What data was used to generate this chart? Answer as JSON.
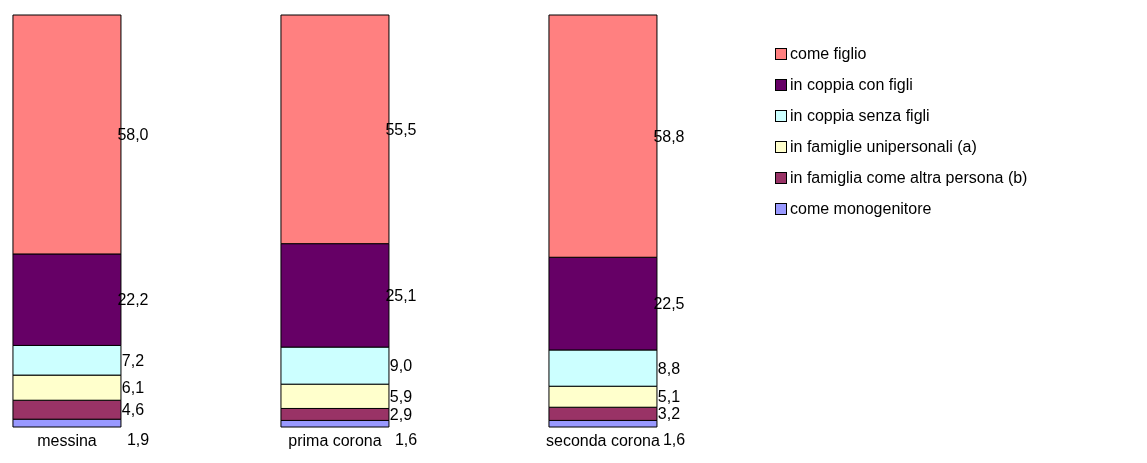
{
  "chart_data": {
    "type": "bar",
    "stacked": true,
    "categories": [
      "messina",
      "prima corona",
      "seconda corona"
    ],
    "legend": "top right",
    "series": [
      {
        "name": "come monogenitore",
        "color": "#9999ff",
        "values": [
          1.9,
          1.6,
          1.6
        ],
        "value_labels": [
          "1,9",
          "1,6",
          "1,6"
        ]
      },
      {
        "name": "in famiglia come altra persona (b)",
        "color": "#993366",
        "values": [
          4.6,
          2.9,
          3.2
        ],
        "value_labels": [
          "4,6",
          "2,9",
          "3,2"
        ]
      },
      {
        "name": "in famiglie unipersonali (a)",
        "color": "#ffffcc",
        "values": [
          6.1,
          5.9,
          5.1
        ],
        "value_labels": [
          "6,1",
          "5,9",
          "5,1"
        ]
      },
      {
        "name": "in coppia senza figli",
        "color": "#ccffff",
        "values": [
          7.2,
          9.0,
          8.8
        ],
        "value_labels": [
          "7,2",
          "9,0",
          "8,8"
        ]
      },
      {
        "name": "in coppia con figli",
        "color": "#660066",
        "values": [
          22.2,
          25.1,
          22.5
        ],
        "value_labels": [
          "22,2",
          "25,1",
          "22,5"
        ]
      },
      {
        "name": "come figlio",
        "color": "#ff8080",
        "values": [
          58.0,
          55.5,
          58.8
        ],
        "value_labels": [
          "58,0",
          "55,5",
          "58,8"
        ]
      }
    ]
  }
}
